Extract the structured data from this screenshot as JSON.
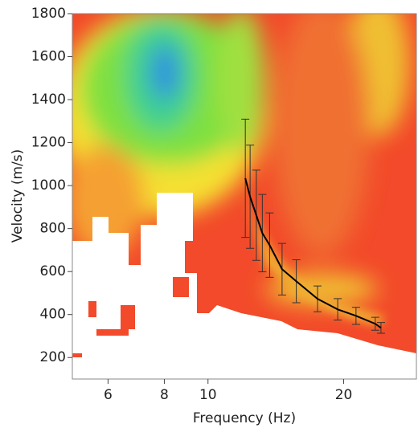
{
  "chart_data": {
    "type": "line",
    "x_label": "Frequency (Hz)",
    "y_label": "Velocity (m/s)",
    "xscale": "log",
    "xlim": [
      5,
      29
    ],
    "xticks": [
      6,
      8,
      10,
      20
    ],
    "ylim": [
      100,
      1800
    ],
    "yticks": [
      200,
      400,
      600,
      800,
      1000,
      1200,
      1400,
      1600,
      1800
    ],
    "color": "#000000",
    "x": [
      12.1,
      12.4,
      12.8,
      13.2,
      13.7,
      14.6,
      15.7,
      17.5,
      19.4,
      21.3,
      23.5,
      24.2
    ],
    "values": [
      1034,
      948,
      862,
      779,
      723,
      611,
      555,
      473,
      424,
      394,
      357,
      338
    ],
    "errors": [
      275,
      240,
      210,
      180,
      150,
      120,
      100,
      60,
      50,
      40,
      30,
      25
    ]
  }
}
